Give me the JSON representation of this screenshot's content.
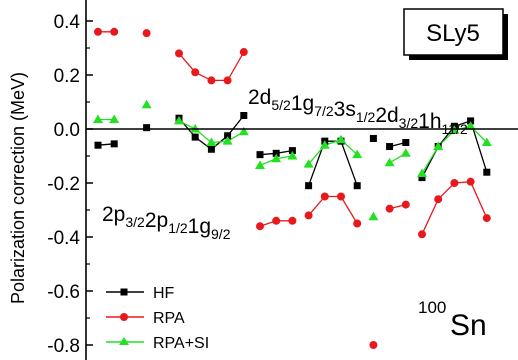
{
  "chart_data": {
    "type": "line",
    "ylabel": "Polarization correction (MeV)",
    "xlabel": "",
    "ylim": [
      -0.85,
      0.4
    ],
    "y_ticks": [
      0.4,
      0.2,
      0.0,
      -0.2,
      -0.4,
      -0.6,
      -0.8
    ],
    "y_tick_labels": [
      "0.4",
      "0.2",
      "0.0",
      "-0.2",
      "-0.4",
      "-0.6",
      "-0.8"
    ],
    "x_axis_shown": false,
    "zero_line": true,
    "legend": {
      "position": "bottom-left",
      "entries": [
        "HF",
        "RPA",
        "RPA+SI"
      ]
    },
    "tag": "SLy5",
    "nucleus": {
      "mass_number": "100",
      "symbol": "Sn"
    },
    "annotations": [
      {
        "id": "lower",
        "parts": [
          {
            "t": "2p",
            "sub": "3/2"
          },
          {
            "t": "2p",
            "sub": "1/2"
          },
          {
            "t": "1g",
            "sub": "9/2"
          }
        ]
      },
      {
        "id": "upper",
        "parts": [
          {
            "t": "2d",
            "sub": "5/2"
          },
          {
            "t": "1g",
            "sub": "7/2"
          },
          {
            "t": "3s",
            "sub": "1/2"
          },
          {
            "t": "2d",
            "sub": "3/2"
          },
          {
            "t": "1h",
            "sub": "11/2"
          }
        ]
      }
    ],
    "series": [
      {
        "name": "HF",
        "color": "#000000",
        "marker": "square",
        "points": [
          [
            1,
            -0.06
          ],
          [
            2,
            -0.055
          ],
          [
            4,
            0.005
          ],
          [
            6,
            0.04
          ],
          [
            7,
            -0.03
          ],
          [
            8,
            -0.075
          ],
          [
            9,
            -0.025
          ],
          [
            10,
            0.05
          ],
          [
            11,
            -0.095
          ],
          [
            12,
            -0.09
          ],
          [
            13,
            -0.08
          ],
          [
            14,
            -0.21
          ],
          [
            15,
            -0.045
          ],
          [
            16,
            -0.045
          ],
          [
            17,
            -0.21
          ],
          [
            18,
            -0.035
          ],
          [
            19,
            -0.065
          ],
          [
            20,
            -0.05
          ],
          [
            21,
            -0.18
          ],
          [
            22,
            -0.065
          ],
          [
            23,
            0.01
          ],
          [
            24,
            0.03
          ],
          [
            25,
            -0.16
          ]
        ],
        "segments": [
          [
            1,
            2
          ],
          [
            6,
            7,
            8,
            9,
            10
          ],
          [
            11,
            12,
            13
          ],
          [
            14,
            15,
            16,
            17
          ],
          [
            19,
            20
          ],
          [
            21,
            22,
            23,
            24,
            25
          ]
        ]
      },
      {
        "name": "RPA",
        "color": "#e8191c",
        "marker": "circle",
        "points": [
          [
            1,
            0.36
          ],
          [
            2,
            0.36
          ],
          [
            4,
            0.355
          ],
          [
            6,
            0.28
          ],
          [
            7,
            0.21
          ],
          [
            8,
            0.18
          ],
          [
            9,
            0.18
          ],
          [
            10,
            0.285
          ],
          [
            11,
            -0.36
          ],
          [
            12,
            -0.34
          ],
          [
            13,
            -0.34
          ],
          [
            14,
            -0.32
          ],
          [
            15,
            -0.25
          ],
          [
            16,
            -0.25
          ],
          [
            17,
            -0.35
          ],
          [
            18,
            -0.8
          ],
          [
            19,
            -0.295
          ],
          [
            20,
            -0.28
          ],
          [
            21,
            -0.39
          ],
          [
            22,
            -0.26
          ],
          [
            23,
            -0.2
          ],
          [
            24,
            -0.195
          ],
          [
            25,
            -0.33
          ]
        ],
        "segments": [
          [
            1,
            2
          ],
          [
            6,
            7,
            8,
            9,
            10
          ],
          [
            11,
            12,
            13
          ],
          [
            14,
            15,
            16,
            17
          ],
          [
            19,
            20
          ],
          [
            21,
            22,
            23,
            24,
            25
          ]
        ]
      },
      {
        "name": "RPA+SI",
        "color": "#22e022",
        "marker": "triangle",
        "points": [
          [
            1,
            0.035
          ],
          [
            2,
            0.035
          ],
          [
            4,
            0.09
          ],
          [
            6,
            0.03
          ],
          [
            7,
            0.0
          ],
          [
            8,
            -0.05
          ],
          [
            9,
            -0.045
          ],
          [
            10,
            -0.01
          ],
          [
            11,
            -0.135
          ],
          [
            12,
            -0.11
          ],
          [
            13,
            -0.1
          ],
          [
            14,
            -0.13
          ],
          [
            15,
            -0.06
          ],
          [
            16,
            -0.04
          ],
          [
            17,
            -0.095
          ],
          [
            18,
            -0.325
          ],
          [
            19,
            -0.125
          ],
          [
            20,
            -0.09
          ],
          [
            21,
            -0.165
          ],
          [
            22,
            -0.065
          ],
          [
            23,
            -0.005
          ],
          [
            24,
            0.01
          ],
          [
            25,
            -0.05
          ]
        ],
        "segments": [
          [
            1,
            2
          ],
          [
            6,
            7,
            8,
            9,
            10
          ],
          [
            11,
            12,
            13
          ],
          [
            14,
            15,
            16,
            17
          ],
          [
            19,
            20
          ],
          [
            21,
            22,
            23,
            24,
            25
          ]
        ]
      }
    ]
  }
}
